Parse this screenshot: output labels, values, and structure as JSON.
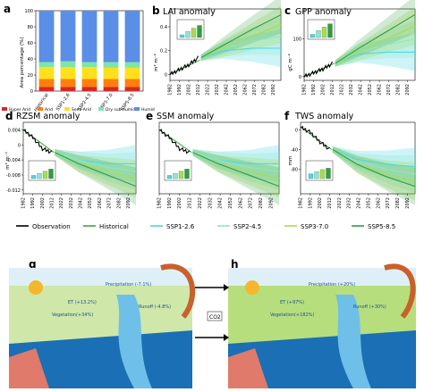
{
  "panel_letters": [
    "a",
    "b",
    "c",
    "d",
    "e",
    "f",
    "g",
    "h"
  ],
  "panel_a": {
    "ylabel": "Area percentage (%)",
    "yticks": [
      "0",
      "20",
      "40",
      "60",
      "80",
      "100"
    ],
    "legend": [
      "Hyper Arid",
      "Arid",
      "Semi-Arid",
      "Dry sub-humid",
      "Humid"
    ]
  },
  "panel_b": {
    "title": "LAI anomaly",
    "ylabel": "m² m⁻²",
    "yticks": [
      "0.4",
      "0.2",
      "0"
    ]
  },
  "panel_c": {
    "title": "GPP anomaly",
    "ylabel": "gC m⁻²",
    "yticks": [
      "100",
      "0"
    ]
  },
  "panel_d": {
    "title": "RZSM anomaly",
    "ylabel": "m³ m⁻³",
    "yticks": [
      "0.004",
      "0",
      "-0.004",
      "-0.008",
      "-0.012"
    ]
  },
  "panel_e": {
    "title": "SSM anomaly"
  },
  "panel_f": {
    "title": "TWS anomaly",
    "ylabel": "mm",
    "yticks": [
      "0",
      "-40",
      "-80"
    ]
  },
  "year_ticks": [
    "1982",
    "1992",
    "2002",
    "2012",
    "2022",
    "2032",
    "2042",
    "2052",
    "2062",
    "2072",
    "2082",
    "2092"
  ],
  "legend": [
    {
      "label": "Observation",
      "color": "#000000"
    },
    {
      "label": "Historical",
      "color": "#3aa845"
    },
    {
      "label": "SSP1-2.6",
      "color": "#4fd6e6"
    },
    {
      "label": "SSP2-4.5",
      "color": "#8be6d2"
    },
    {
      "label": "SSP3-7.0",
      "color": "#a8dc52"
    },
    {
      "label": "SSP5-8.5",
      "color": "#2f9e3f"
    }
  ],
  "illustration": {
    "g_labels": {
      "precip": "Precipitation (-7.1%)",
      "et": "ET (+13.2%)",
      "runoff": "Runoff (-4.8%)",
      "veg": "Vegetation(+34%)"
    },
    "h_labels": {
      "precip": "Precipitation (+20%)",
      "et": "ET (+97%)",
      "runoff": "Runoff (+30%)",
      "veg": "Vegetation(+182%)"
    },
    "co2": "CO2"
  },
  "chart_data": [
    {
      "type": "bar",
      "title": "",
      "categories": [
        "Historical",
        "SSP1-2.6",
        "SSP2-4.5",
        "SSP3-7.0",
        "SSP5-8.5"
      ],
      "series": [
        {
          "name": "Hyper Arid",
          "values": [
            5,
            5,
            5,
            5,
            5
          ]
        },
        {
          "name": "Arid",
          "values": [
            10,
            10,
            10,
            10,
            10
          ]
        },
        {
          "name": "Semi-Arid",
          "values": [
            15,
            15,
            15,
            14,
            14
          ]
        },
        {
          "name": "Dry sub-humid",
          "values": [
            6,
            7,
            6,
            7,
            7
          ]
        },
        {
          "name": "Humid",
          "values": [
            64,
            63,
            64,
            64,
            64
          ]
        }
      ],
      "stacked": true,
      "ylabel": "Area percentage (%)",
      "ylim": [
        0,
        100
      ]
    },
    {
      "type": "line",
      "title": "LAI anomaly",
      "ylabel": "m² m⁻²",
      "observation": {
        "x": [
          1982,
          1992,
          2002,
          2012
        ],
        "y": [
          0.0,
          0.04,
          0.08,
          0.14
        ]
      },
      "historical": {
        "x": [
          1982,
          2014
        ],
        "y": [
          0.0,
          0.12
        ]
      },
      "scenarios": {
        "SSP1-2.6": [
          0.14,
          0.2,
          0.22,
          0.22
        ],
        "SSP2-4.5": [
          0.14,
          0.22,
          0.28,
          0.32
        ],
        "SSP3-7.0": [
          0.14,
          0.22,
          0.32,
          0.42
        ],
        "SSP5-8.5": [
          0.14,
          0.25,
          0.38,
          0.5
        ]
      },
      "scenario_x": [
        2015,
        2040,
        2070,
        2100
      ],
      "ylim": [
        -0.05,
        0.55
      ]
    },
    {
      "type": "line",
      "title": "GPP anomaly",
      "ylabel": "gC m⁻²",
      "observation": {
        "x": [
          1982,
          1992,
          2002,
          2012
        ],
        "y": [
          0,
          10,
          20,
          35
        ]
      },
      "historical": {
        "x": [
          1982,
          2014
        ],
        "y": [
          0,
          35
        ]
      },
      "scenarios": {
        "SSP1-2.6": [
          35,
          60,
          65,
          65
        ],
        "SSP2-4.5": [
          35,
          65,
          85,
          100
        ],
        "SSP3-7.0": [
          35,
          65,
          100,
          135
        ],
        "SSP5-8.5": [
          35,
          75,
          120,
          165
        ]
      },
      "scenario_x": [
        2015,
        2040,
        2070,
        2100
      ],
      "ylim": [
        -10,
        180
      ]
    },
    {
      "type": "line",
      "title": "RZSM anomaly",
      "ylabel": "m³ m⁻³",
      "observation": {
        "x": [
          1982,
          1992,
          2002,
          2012
        ],
        "y": [
          0.004,
          0.002,
          -0.001,
          -0.002
        ]
      },
      "historical": {
        "x": [
          1982,
          2014
        ],
        "y": [
          0.004,
          -0.002
        ]
      },
      "scenarios": {
        "SSP1-2.6": [
          -0.002,
          -0.004,
          -0.005,
          -0.005
        ],
        "SSP2-4.5": [
          -0.002,
          -0.004,
          -0.006,
          -0.007
        ],
        "SSP3-7.0": [
          -0.002,
          -0.005,
          -0.007,
          -0.009
        ],
        "SSP5-8.5": [
          -0.002,
          -0.005,
          -0.008,
          -0.011
        ]
      },
      "scenario_x": [
        2015,
        2040,
        2070,
        2100
      ],
      "ylim": [
        -0.013,
        0.006
      ]
    },
    {
      "type": "line",
      "title": "SSM anomaly",
      "observation": {
        "x": [
          1982,
          1992,
          2002,
          2012
        ],
        "y": [
          0.004,
          0.002,
          -0.001,
          -0.002
        ]
      },
      "historical": {
        "x": [
          1982,
          2014
        ],
        "y": [
          0.004,
          -0.002
        ]
      },
      "scenarios": {
        "SSP1-2.6": [
          -0.002,
          -0.004,
          -0.005,
          -0.005
        ],
        "SSP2-4.5": [
          -0.002,
          -0.004,
          -0.006,
          -0.007
        ],
        "SSP3-7.0": [
          -0.002,
          -0.005,
          -0.007,
          -0.009
        ],
        "SSP5-8.5": [
          -0.002,
          -0.005,
          -0.008,
          -0.011
        ]
      },
      "scenario_x": [
        2015,
        2040,
        2070,
        2100
      ],
      "ylim": [
        -0.013,
        0.006
      ]
    },
    {
      "type": "line",
      "title": "TWS anomaly",
      "ylabel": "mm",
      "observation": {
        "x": [
          1982,
          1992,
          2002,
          2012
        ],
        "y": [
          5,
          -5,
          -25,
          -40
        ]
      },
      "historical": {
        "x": [
          1982,
          2014
        ],
        "y": [
          5,
          -40
        ]
      },
      "scenarios": {
        "SSP1-2.6": [
          -40,
          -60,
          -70,
          -75
        ],
        "SSP2-4.5": [
          -40,
          -65,
          -80,
          -90
        ],
        "SSP3-7.0": [
          -40,
          -70,
          -90,
          -105
        ],
        "SSP5-8.5": [
          -40,
          -70,
          -95,
          -115
        ]
      },
      "scenario_x": [
        2015,
        2040,
        2070,
        2100
      ],
      "ylim": [
        -130,
        15
      ]
    }
  ]
}
